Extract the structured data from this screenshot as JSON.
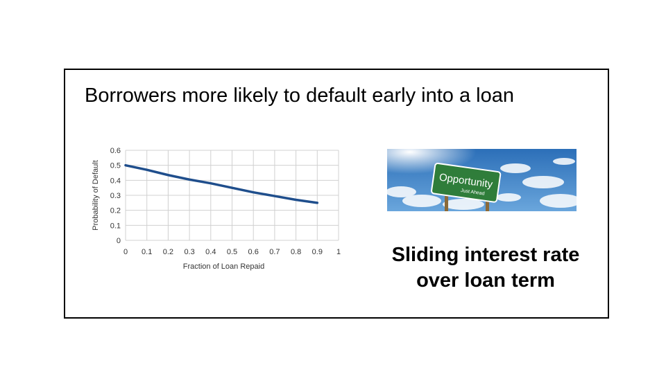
{
  "slide": {
    "headline": "Borrowers more likely to default early into a loan",
    "caption_line1": "Sliding interest rate",
    "caption_line2": "over loan term",
    "sign_text": "Opportunity",
    "sign_subtext": "Just Ahead"
  },
  "colors": {
    "line": "#1f4e8c",
    "grid": "#d0d0d0",
    "sign": "#2f7d3a",
    "sky": "#3f83c9"
  },
  "chart_data": {
    "type": "line",
    "title": "",
    "xlabel": "Fraction of Loan Repaid",
    "ylabel": "Probability of Default",
    "xlim": [
      0,
      1
    ],
    "ylim": [
      0,
      0.6
    ],
    "xticks": [
      0,
      0.1,
      0.2,
      0.3,
      0.4,
      0.5,
      0.6,
      0.7,
      0.8,
      0.9,
      1
    ],
    "yticks": [
      0,
      0.1,
      0.2,
      0.3,
      0.4,
      0.5,
      0.6
    ],
    "grid": true,
    "series": [
      {
        "x": [
          0,
          0.1,
          0.2,
          0.3,
          0.4,
          0.5,
          0.6,
          0.7,
          0.8,
          0.9
        ],
        "y": [
          0.5,
          0.47,
          0.435,
          0.405,
          0.38,
          0.35,
          0.32,
          0.295,
          0.27,
          0.25
        ]
      }
    ]
  }
}
